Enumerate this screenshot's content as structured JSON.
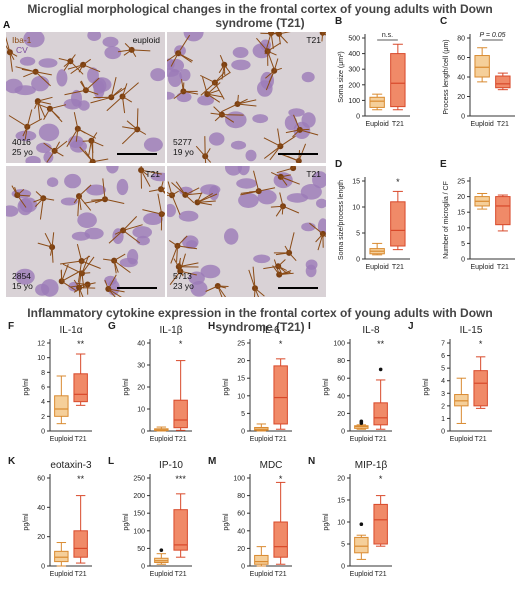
{
  "figure": {
    "title_top": "Microglial morphological changes in the frontal cortex of young adults with Down syndrome (T21)",
    "title_bottom": "Inflammatory cytokine expression in the frontal cortex of young adults with Down syndrome (T21)"
  },
  "panel_a": {
    "letter": "A",
    "legend_iba": "Iba-1",
    "legend_cv": "CV",
    "images": [
      {
        "label_tr": "euploid",
        "id": "4016",
        "age": "25 yo"
      },
      {
        "label_tr": "T21",
        "id": "5277",
        "age": "19 yo"
      },
      {
        "label_tr": "T21",
        "id": "2854",
        "age": "15 yo"
      },
      {
        "label_tr": "T21",
        "id": "5713",
        "age": "23 yo"
      }
    ]
  },
  "colors": {
    "euploid_fill": "#f5cf9a",
    "euploid_stroke": "#d98a30",
    "t21_fill": "#f08a68",
    "t21_stroke": "#d8492a",
    "axis": "#333333"
  },
  "chart_data": [
    {
      "letter": "B",
      "type": "box",
      "title": "",
      "ylabel": "Soma size (μm²)",
      "ylim": [
        0,
        500
      ],
      "yticks": [
        0,
        100,
        200,
        300,
        400,
        500
      ],
      "categories": [
        "Euploid",
        "T21"
      ],
      "boxes": [
        {
          "min": 40,
          "q1": 55,
          "median": 95,
          "q3": 120,
          "max": 140,
          "outliers": []
        },
        {
          "min": 40,
          "q1": 60,
          "median": 210,
          "q3": 400,
          "max": 460,
          "outliers": []
        }
      ],
      "annotation": "n.s."
    },
    {
      "letter": "C",
      "type": "box",
      "title": "",
      "ylabel": "Process length/cell (μm)",
      "ylim": [
        0,
        80
      ],
      "yticks": [
        0,
        20,
        40,
        60,
        80
      ],
      "categories": [
        "Euploid",
        "T21"
      ],
      "boxes": [
        {
          "min": 35,
          "q1": 40,
          "median": 50,
          "q3": 62,
          "max": 70,
          "outliers": []
        },
        {
          "min": 27,
          "q1": 29,
          "median": 33,
          "q3": 41,
          "max": 44,
          "outliers": []
        }
      ],
      "annotation": "P = 0.05"
    },
    {
      "letter": "D",
      "type": "box",
      "title": "",
      "ylabel": "Soma size/process length",
      "ylim": [
        0,
        15
      ],
      "yticks": [
        0,
        5,
        10,
        15
      ],
      "categories": [
        "Euploid",
        "T21"
      ],
      "boxes": [
        {
          "min": 0.8,
          "q1": 1.0,
          "median": 1.5,
          "q3": 2.0,
          "max": 3.0,
          "outliers": []
        },
        {
          "min": 1.8,
          "q1": 2.5,
          "median": 5.5,
          "q3": 11,
          "max": 13,
          "outliers": []
        }
      ],
      "annotation": "*"
    },
    {
      "letter": "E",
      "type": "box",
      "title": "",
      "ylabel": "Number of microglia / CF",
      "ylim": [
        0,
        25
      ],
      "yticks": [
        0,
        5,
        10,
        15,
        20,
        25
      ],
      "categories": [
        "Euploid",
        "T21"
      ],
      "boxes": [
        {
          "min": 16,
          "q1": 17,
          "median": 18.5,
          "q3": 20,
          "max": 21,
          "outliers": []
        },
        {
          "min": 9,
          "q1": 11,
          "median": 17,
          "q3": 20,
          "max": 20.5,
          "outliers": []
        }
      ],
      "annotation": ""
    },
    {
      "letter": "F",
      "type": "box",
      "title": "IL-1α",
      "ylabel": "pg/ml",
      "ylim": [
        0,
        12
      ],
      "yticks": [
        0,
        2,
        4,
        6,
        8,
        10,
        12
      ],
      "categories": [
        "Euploid",
        "T21"
      ],
      "boxes": [
        {
          "min": 1,
          "q1": 2,
          "median": 3,
          "q3": 4.8,
          "max": 7.5,
          "outliers": []
        },
        {
          "min": 3.5,
          "q1": 4,
          "median": 5,
          "q3": 7.8,
          "max": 10.5,
          "outliers": []
        }
      ],
      "annotation": "**"
    },
    {
      "letter": "G",
      "type": "box",
      "title": "IL-1β",
      "ylabel": "pg/ml",
      "ylim": [
        0,
        40
      ],
      "yticks": [
        0,
        10,
        20,
        30,
        40
      ],
      "categories": [
        "Euploid",
        "T21"
      ],
      "boxes": [
        {
          "min": 0,
          "q1": 0.2,
          "median": 0.5,
          "q3": 1,
          "max": 1.8,
          "outliers": []
        },
        {
          "min": 0.3,
          "q1": 1.5,
          "median": 5,
          "q3": 14,
          "max": 32,
          "outliers": []
        }
      ],
      "annotation": "*"
    },
    {
      "letter": "H",
      "type": "box",
      "title": "IL-6",
      "ylabel": "pg/ml",
      "ylim": [
        0,
        25
      ],
      "yticks": [
        0,
        5,
        10,
        15,
        20,
        25
      ],
      "categories": [
        "Euploid",
        "T21"
      ],
      "boxes": [
        {
          "min": 0,
          "q1": 0.2,
          "median": 0.5,
          "q3": 1,
          "max": 2,
          "outliers": []
        },
        {
          "min": 0.5,
          "q1": 2,
          "median": 9.5,
          "q3": 18.5,
          "max": 20.5,
          "outliers": []
        }
      ],
      "annotation": "*"
    },
    {
      "letter": "I",
      "type": "box",
      "title": "IL-8",
      "ylabel": "pg/ml",
      "ylim": [
        0,
        100
      ],
      "yticks": [
        0,
        20,
        40,
        60,
        80,
        100
      ],
      "categories": [
        "Euploid",
        "T21"
      ],
      "boxes": [
        {
          "min": 2,
          "q1": 3,
          "median": 5,
          "q3": 6,
          "max": 7,
          "outliers": [
            9,
            11
          ]
        },
        {
          "min": 2,
          "q1": 7,
          "median": 15,
          "q3": 32,
          "max": 58,
          "outliers": [
            70
          ]
        }
      ],
      "annotation": "**"
    },
    {
      "letter": "J",
      "type": "box",
      "title": "IL-15",
      "ylabel": "pg/ml",
      "ylim": [
        0,
        7
      ],
      "yticks": [
        0,
        1,
        2,
        3,
        4,
        5,
        6,
        7
      ],
      "categories": [
        "Euploid",
        "T21"
      ],
      "boxes": [
        {
          "min": 0.6,
          "q1": 2,
          "median": 2.4,
          "q3": 2.9,
          "max": 4.2,
          "outliers": []
        },
        {
          "min": 1.8,
          "q1": 2,
          "median": 3.8,
          "q3": 4.8,
          "max": 5.9,
          "outliers": []
        }
      ],
      "annotation": "*"
    },
    {
      "letter": "K",
      "type": "box",
      "title": "eotaxin-3",
      "ylabel": "pg/ml",
      "ylim": [
        0,
        60
      ],
      "yticks": [
        0,
        20,
        40,
        60
      ],
      "categories": [
        "Euploid",
        "T21"
      ],
      "boxes": [
        {
          "min": 0,
          "q1": 3,
          "median": 6,
          "q3": 10,
          "max": 16,
          "outliers": []
        },
        {
          "min": 2,
          "q1": 6,
          "median": 12,
          "q3": 24,
          "max": 48,
          "outliers": []
        }
      ],
      "annotation": "**"
    },
    {
      "letter": "L",
      "type": "box",
      "title": "IP-10",
      "ylabel": "pg/ml",
      "ylim": [
        0,
        250
      ],
      "yticks": [
        0,
        50,
        100,
        150,
        200,
        250
      ],
      "categories": [
        "Euploid",
        "T21"
      ],
      "boxes": [
        {
          "min": 5,
          "q1": 10,
          "median": 15,
          "q3": 22,
          "max": 35,
          "outliers": [
            45
          ]
        },
        {
          "min": 25,
          "q1": 45,
          "median": 60,
          "q3": 160,
          "max": 205,
          "outliers": []
        }
      ],
      "annotation": "***"
    },
    {
      "letter": "M",
      "type": "box",
      "title": "MDC",
      "ylabel": "pg/ml",
      "ylim": [
        0,
        100
      ],
      "yticks": [
        0,
        20,
        40,
        60,
        80,
        100
      ],
      "categories": [
        "Euploid",
        "T21"
      ],
      "boxes": [
        {
          "min": 0,
          "q1": 2,
          "median": 5,
          "q3": 12,
          "max": 22,
          "outliers": []
        },
        {
          "min": 2,
          "q1": 10,
          "median": 22,
          "q3": 50,
          "max": 95,
          "outliers": []
        }
      ],
      "annotation": "*"
    },
    {
      "letter": "N",
      "type": "box",
      "title": "MIP-1β",
      "ylabel": "pg/ml",
      "ylim": [
        0,
        20
      ],
      "yticks": [
        0,
        5,
        10,
        15,
        20
      ],
      "categories": [
        "Euploid",
        "T21"
      ],
      "boxes": [
        {
          "min": 1.5,
          "q1": 3,
          "median": 4.5,
          "q3": 6.5,
          "max": 7,
          "outliers": [
            9.5
          ]
        },
        {
          "min": 4.5,
          "q1": 5,
          "median": 10.5,
          "q3": 14,
          "max": 16,
          "outliers": []
        }
      ],
      "annotation": "*"
    }
  ]
}
